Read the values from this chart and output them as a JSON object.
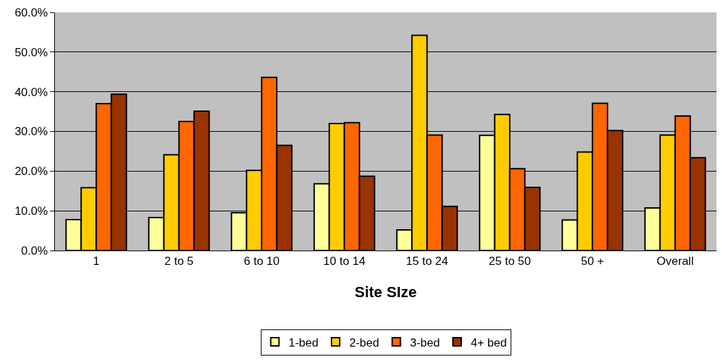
{
  "chart_data": {
    "type": "bar",
    "xlabel": "Site SIze",
    "categories": [
      "1",
      "2 to 5",
      "6 to 10",
      "10 to 14",
      "15 to 24",
      "25 to 50",
      "50 +",
      "Overall"
    ],
    "series": [
      {
        "name": "1-bed",
        "color": "#ffff99",
        "values": [
          7.8,
          8.3,
          9.5,
          16.8,
          5.2,
          29.0,
          7.7,
          10.7
        ]
      },
      {
        "name": "2-bed",
        "color": "#ffcc00",
        "values": [
          15.8,
          24.1,
          20.2,
          32.0,
          54.2,
          34.3,
          24.8,
          29.1
        ]
      },
      {
        "name": "3-bed",
        "color": "#ff6600",
        "values": [
          37.0,
          32.5,
          43.6,
          32.2,
          29.1,
          20.6,
          37.1,
          33.9
        ]
      },
      {
        "name": "4+ bed",
        "color": "#993300",
        "values": [
          39.4,
          35.1,
          26.5,
          18.7,
          11.1,
          15.9,
          30.2,
          23.4
        ]
      }
    ],
    "ylim": [
      0,
      60
    ],
    "yticks": [
      {
        "value": 0,
        "label": "0.0%"
      },
      {
        "value": 10,
        "label": "10.0%"
      },
      {
        "value": 20,
        "label": "20.0%"
      },
      {
        "value": 30,
        "label": "30.0%"
      },
      {
        "value": 40,
        "label": "40.0%"
      },
      {
        "value": 50,
        "label": "50.0%"
      },
      {
        "value": 60,
        "label": "60.0%"
      }
    ],
    "grid": "y",
    "legend": "bottom"
  }
}
